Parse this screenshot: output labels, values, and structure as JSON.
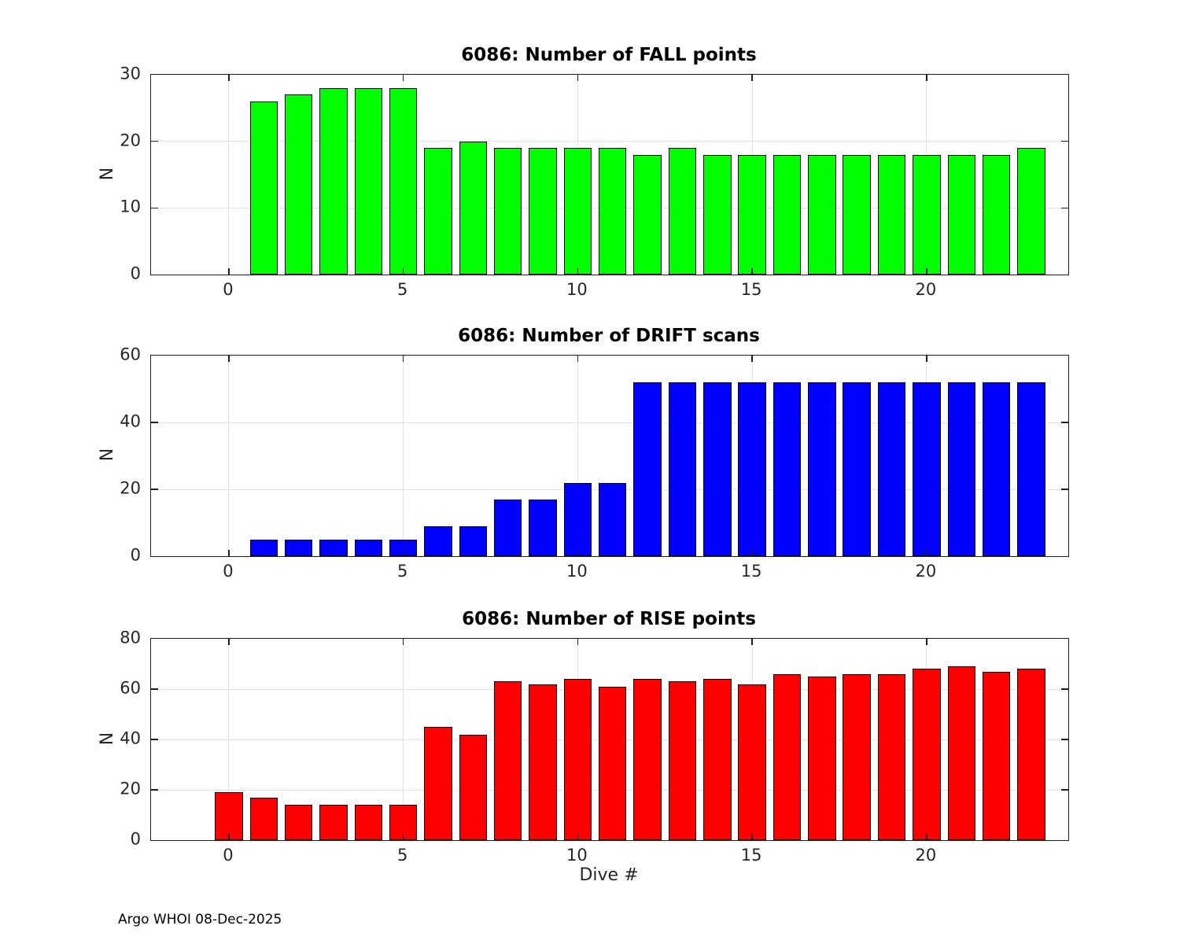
{
  "figure": {
    "background": "#ffffff",
    "axis_color": "#262626",
    "grid_color": "#e2e2e2",
    "bar_edge_color": "#000000"
  },
  "footer": {
    "text": "Argo WHOI 08-Dec-2025"
  },
  "chart_data": [
    {
      "type": "bar",
      "title": "6086: Number of FALL points",
      "xlabel": "",
      "ylabel": "N",
      "bar_color": "#00ff00",
      "x": [
        1,
        2,
        3,
        4,
        5,
        6,
        7,
        8,
        9,
        10,
        11,
        12,
        13,
        14,
        15,
        16,
        17,
        18,
        19,
        20,
        21,
        22,
        23
      ],
      "values": [
        26,
        27,
        28,
        28,
        28,
        19,
        20,
        19,
        19,
        19,
        19,
        18,
        19,
        18,
        18,
        18,
        18,
        18,
        18,
        18,
        18,
        18,
        19
      ],
      "xlim": [
        -2.23,
        24.06
      ],
      "ylim": [
        0,
        30
      ],
      "xticks": [
        0,
        5,
        10,
        15,
        20
      ],
      "yticks": [
        0,
        10,
        20,
        30
      ],
      "grid": true,
      "legend": "none"
    },
    {
      "type": "bar",
      "title": "6086: Number of DRIFT scans",
      "xlabel": "",
      "ylabel": "N",
      "bar_color": "#0000ff",
      "x": [
        1,
        2,
        3,
        4,
        5,
        6,
        7,
        8,
        9,
        10,
        11,
        12,
        13,
        14,
        15,
        16,
        17,
        18,
        19,
        20,
        21,
        22,
        23
      ],
      "values": [
        5,
        5,
        5,
        5,
        5,
        9,
        9,
        17,
        17,
        22,
        22,
        52,
        52,
        52,
        52,
        52,
        52,
        52,
        52,
        52,
        52,
        52,
        52
      ],
      "xlim": [
        -2.23,
        24.06
      ],
      "ylim": [
        0,
        60
      ],
      "xticks": [
        0,
        5,
        10,
        15,
        20
      ],
      "yticks": [
        0,
        20,
        40,
        60
      ],
      "grid": true,
      "legend": "none"
    },
    {
      "type": "bar",
      "title": "6086: Number of RISE points",
      "xlabel": "Dive #",
      "ylabel": "N",
      "bar_color": "#ff0000",
      "x": [
        0,
        1,
        2,
        3,
        4,
        5,
        6,
        7,
        8,
        9,
        10,
        11,
        12,
        13,
        14,
        15,
        16,
        17,
        18,
        19,
        20,
        21,
        22,
        23
      ],
      "values": [
        19,
        17,
        14,
        14,
        14,
        14,
        45,
        42,
        63,
        62,
        64,
        61,
        64,
        63,
        64,
        62,
        66,
        65,
        66,
        66,
        68,
        69,
        67,
        68
      ],
      "xlim": [
        -2.23,
        24.06
      ],
      "ylim": [
        0,
        80
      ],
      "xticks": [
        0,
        5,
        10,
        15,
        20
      ],
      "yticks": [
        0,
        20,
        40,
        60,
        80
      ],
      "grid": true,
      "legend": "none"
    }
  ]
}
